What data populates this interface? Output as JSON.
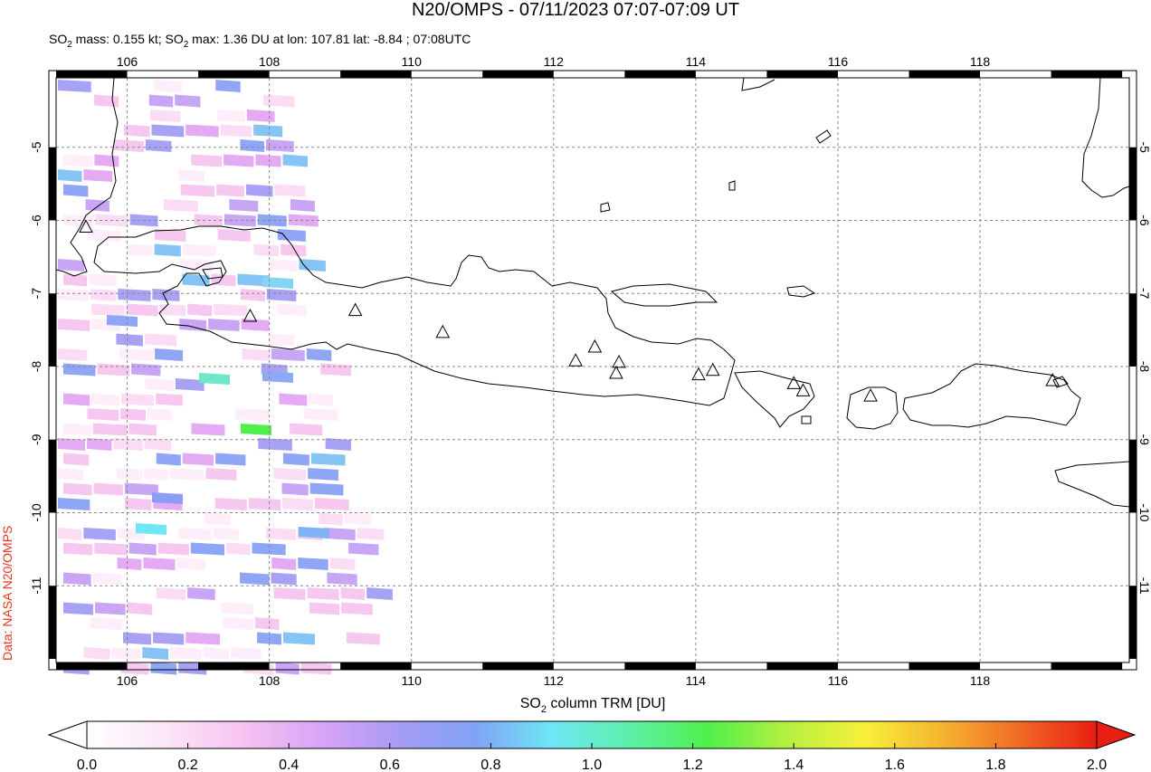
{
  "title": "N20/OMPS - 07/11/2023 07:07-07:09 UT",
  "subtitle": {
    "p1": "SO",
    "sub1": "2",
    "p2": " mass: 0.155 kt; SO",
    "sub2": "2",
    "p3": " max: 1.36 DU at lon: 107.81 lat: -8.84 ; 07:08UTC"
  },
  "credit": "Data: NASA N20/OMPS",
  "colorbar": {
    "label_main": "SO",
    "label_sub": "2",
    "label_rest": " column TRM [DU]",
    "ticks": [
      "0.0",
      "0.2",
      "0.4",
      "0.6",
      "0.8",
      "1.0",
      "1.2",
      "1.4",
      "1.6",
      "1.8",
      "2.0"
    ],
    "colors": [
      "#ffffff",
      "#fbe6f6",
      "#f6c3f0",
      "#d9a4f5",
      "#a89cf4",
      "#7fa3f5",
      "#6fe7f5",
      "#5cf0a8",
      "#4ff04a",
      "#b4f040",
      "#f6f03a",
      "#f5b530",
      "#f16a25",
      "#e81e12"
    ]
  },
  "map": {
    "lon_ticks": [
      "106",
      "108",
      "110",
      "112",
      "114",
      "116",
      "118"
    ],
    "lat_ticks": [
      "-5",
      "-6",
      "-7",
      "-8",
      "-9",
      "-10",
      "-11"
    ],
    "lon_range": [
      105.0,
      120.1
    ],
    "lat_range": [
      -12.05,
      -4.05
    ]
  },
  "volcanoes": [
    {
      "lon": 105.42,
      "lat": -6.1
    },
    {
      "lon": 107.73,
      "lat": -7.32
    },
    {
      "lon": 109.21,
      "lat": -7.24
    },
    {
      "lon": 110.44,
      "lat": -7.54
    },
    {
      "lon": 112.31,
      "lat": -7.93
    },
    {
      "lon": 112.58,
      "lat": -7.74
    },
    {
      "lon": 112.92,
      "lat": -7.95
    },
    {
      "lon": 112.88,
      "lat": -8.1
    },
    {
      "lon": 114.04,
      "lat": -8.12
    },
    {
      "lon": 114.24,
      "lat": -8.06
    },
    {
      "lon": 115.38,
      "lat": -8.24
    },
    {
      "lon": 115.51,
      "lat": -8.34
    },
    {
      "lon": 116.46,
      "lat": -8.41
    },
    {
      "lon": 119.02,
      "lat": -8.2
    }
  ]
}
